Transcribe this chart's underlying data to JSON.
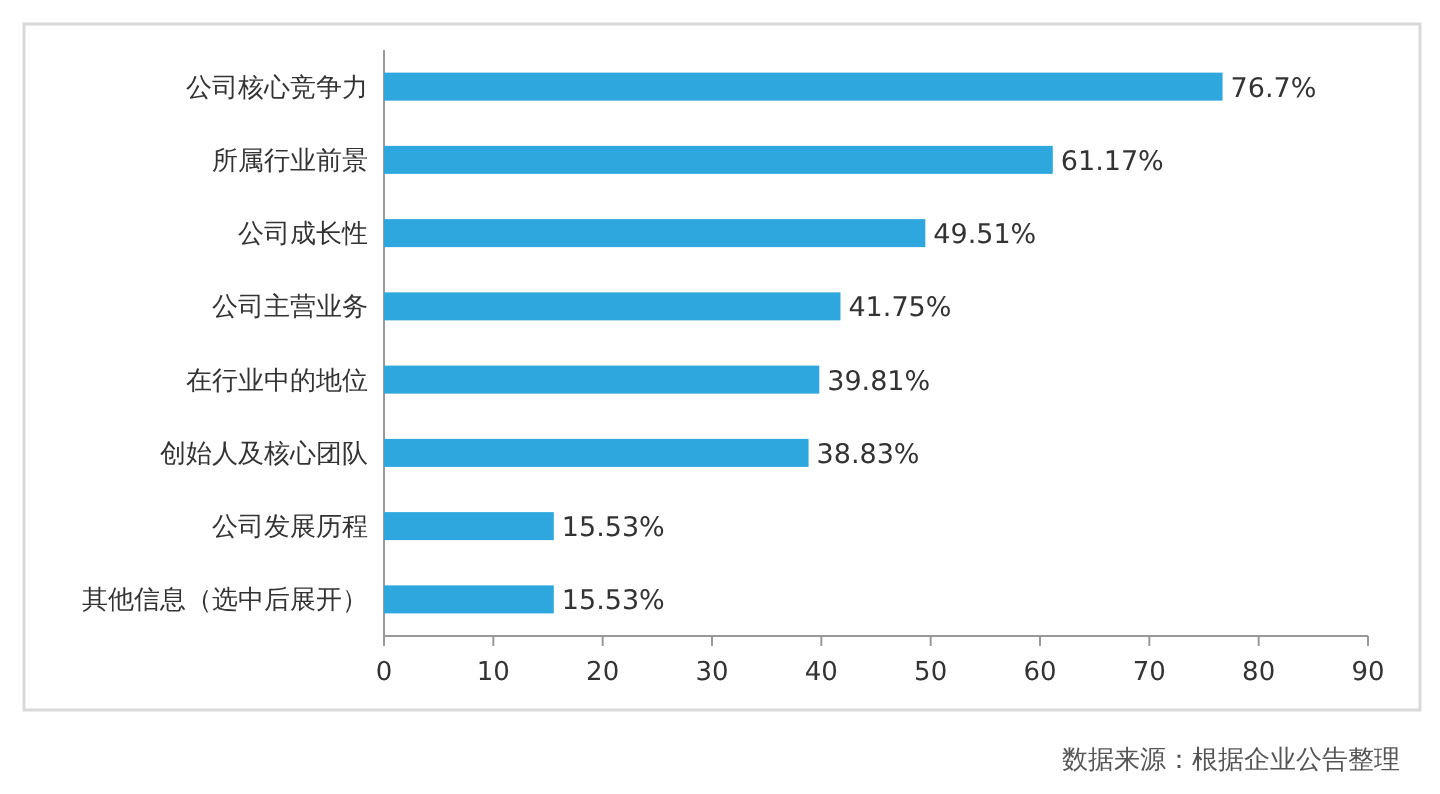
{
  "chart_data": {
    "type": "bar",
    "orientation": "horizontal",
    "categories": [
      "公司核心竞争力",
      "所属行业前景",
      "公司成长性",
      "公司主营业务",
      "在行业中的地位",
      "创始人及核心团队",
      "公司发展历程",
      "其他信息（选中后展开）"
    ],
    "values": [
      76.7,
      61.17,
      49.51,
      41.75,
      39.81,
      38.83,
      15.53,
      15.53
    ],
    "value_labels": [
      "76.7%",
      "61.17%",
      "49.51%",
      "41.75%",
      "39.81%",
      "38.83%",
      "15.53%",
      "15.53%"
    ],
    "color": "#2ea6de",
    "xlim": [
      0,
      90
    ],
    "xticks": [
      0,
      10,
      20,
      30,
      40,
      50,
      60,
      70,
      80,
      90
    ],
    "grid": false,
    "annotations": [
      "数据来源：根据企业公告整理"
    ]
  }
}
